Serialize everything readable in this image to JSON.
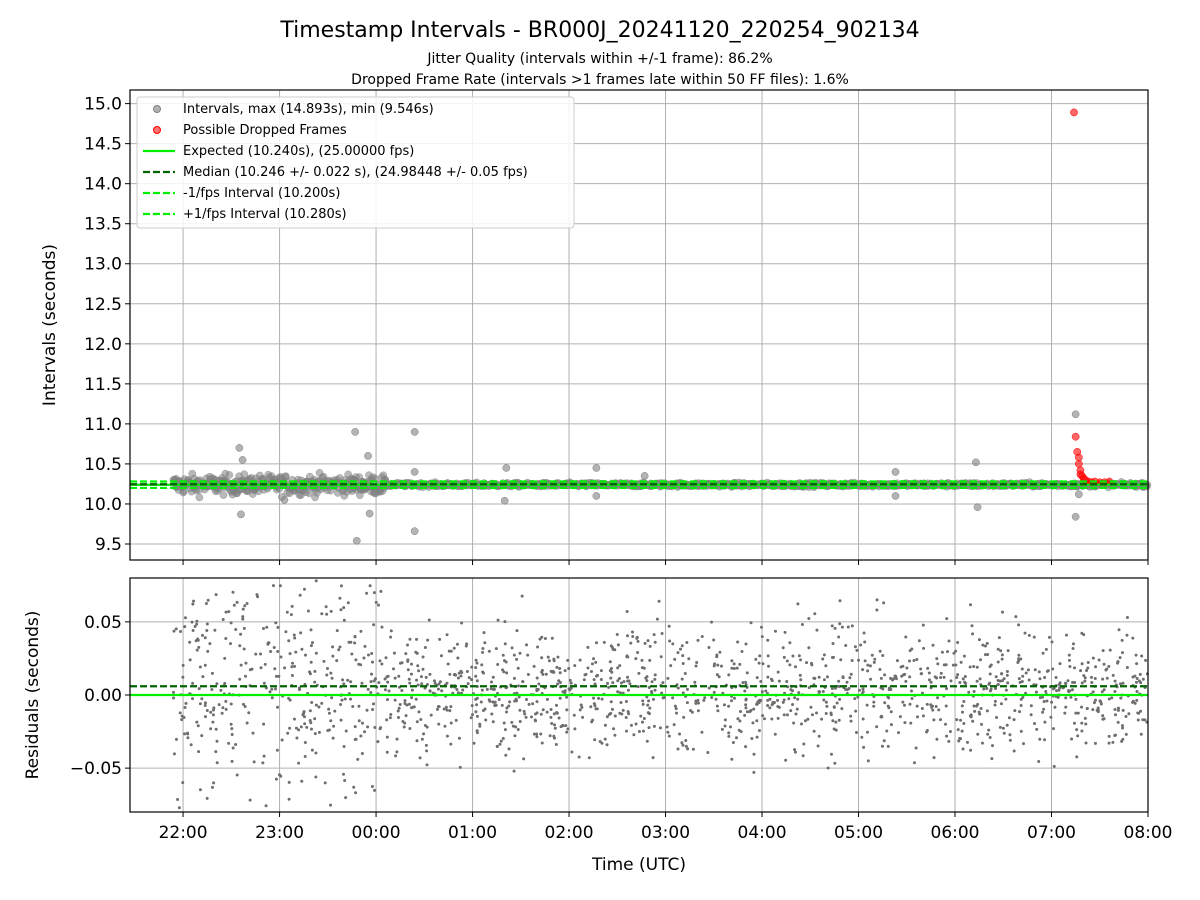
{
  "figure": {
    "title": "Timestamp Intervals - BR000J_20241120_220254_902134",
    "subtitle_line1": "Jitter Quality (intervals within +/-1 frame): 86.2%",
    "subtitle_line2": "Dropped Frame Rate (intervals >1 frames late within 50 FF files): 1.6%"
  },
  "legend": {
    "items": [
      {
        "label": "Intervals, max (14.893s), min (9.546s)",
        "kind": "marker",
        "color": "#808080"
      },
      {
        "label": "Possible Dropped Frames",
        "kind": "marker",
        "color": "#ff0000"
      },
      {
        "label": "Expected (10.240s), (25.00000 fps)",
        "kind": "solid",
        "color": "#00ee00"
      },
      {
        "label": "Median (10.246 +/- 0.022 s), (24.98448 +/- 0.05 fps)",
        "kind": "dashed",
        "color": "#006400"
      },
      {
        "label": "-1/fps Interval (10.200s)",
        "kind": "dashed",
        "color": "#00ee00"
      },
      {
        "label": "+1/fps Interval (10.280s)",
        "kind": "dashed",
        "color": "#00ee00"
      }
    ]
  },
  "colors": {
    "intervals": "#808080",
    "dropped": "#ff0000",
    "expected": "#00ee00",
    "median": "#006400",
    "grid": "#b0b0b0"
  },
  "chart_data": [
    {
      "type": "scatter",
      "panel": "top",
      "title": "Timestamp Intervals - BR000J_20241120_220254_902134",
      "xlabel": "",
      "ylabel": "Intervals (seconds)",
      "xlim_hours": [
        -2.55,
        8.0
      ],
      "ylim": [
        9.3,
        15.17
      ],
      "y_ticks": [
        "9.5",
        "10.0",
        "10.5",
        "11.0",
        "11.5",
        "12.0",
        "12.5",
        "13.0",
        "13.5",
        "14.0",
        "14.5",
        "15.0"
      ],
      "grid": true,
      "legend_position": "upper-left",
      "lines": [
        {
          "name": "Expected (10.240s), (25.00000 fps)",
          "y": 10.24,
          "style": "solid"
        },
        {
          "name": "Median (10.246 +/- 0.022 s), (24.98448 +/- 0.05 fps)",
          "y": 10.246,
          "style": "dashed"
        },
        {
          "name": "-1/fps Interval (10.200s)",
          "y": 10.2,
          "style": "dashed"
        },
        {
          "name": "+1/fps Interval (10.280s)",
          "y": 10.28,
          "style": "dashed"
        }
      ],
      "series": [
        {
          "name": "Intervals, max (14.893s), min (9.546s)",
          "max": 14.893,
          "min": 9.546,
          "outliers": [
            {
              "x": "22:35",
              "y": 10.7
            },
            {
              "x": "22:36",
              "y": 9.87
            },
            {
              "x": "22:37",
              "y": 10.55
            },
            {
              "x": "23:03",
              "y": 10.05
            },
            {
              "x": "23:47",
              "y": 10.9
            },
            {
              "x": "23:48",
              "y": 9.54
            },
            {
              "x": "23:55",
              "y": 10.6
            },
            {
              "x": "23:56",
              "y": 9.88
            },
            {
              "x": "00:24",
              "y": 10.9
            },
            {
              "x": "00:24",
              "y": 9.66
            },
            {
              "x": "00:24",
              "y": 10.4
            },
            {
              "x": "01:21",
              "y": 10.45
            },
            {
              "x": "01:20",
              "y": 10.04
            },
            {
              "x": "02:17",
              "y": 10.45
            },
            {
              "x": "02:17",
              "y": 10.1
            },
            {
              "x": "02:47",
              "y": 10.35
            },
            {
              "x": "05:23",
              "y": 10.4
            },
            {
              "x": "05:23",
              "y": 10.1
            },
            {
              "x": "06:13",
              "y": 10.52
            },
            {
              "x": "06:14",
              "y": 9.96
            },
            {
              "x": "07:15",
              "y": 11.12
            },
            {
              "x": "07:15",
              "y": 9.84
            },
            {
              "x": "07:17",
              "y": 10.12
            }
          ]
        },
        {
          "name": "Possible Dropped Frames",
          "points": [
            {
              "x": "07:14",
              "y": 14.89
            },
            {
              "x": "07:15",
              "y": 10.84
            },
            {
              "x": "07:16",
              "y": 10.65
            },
            {
              "x": "07:17",
              "y": 10.58
            },
            {
              "x": "07:17",
              "y": 10.5
            },
            {
              "x": "07:18",
              "y": 10.42
            },
            {
              "x": "07:18",
              "y": 10.37
            },
            {
              "x": "07:19",
              "y": 10.35
            },
            {
              "x": "07:20",
              "y": 10.32
            },
            {
              "x": "07:21",
              "y": 10.3
            },
            {
              "x": "07:23",
              "y": 10.28
            },
            {
              "x": "07:25",
              "y": 10.27
            },
            {
              "x": "07:27",
              "y": 10.28
            },
            {
              "x": "07:30",
              "y": 10.27
            },
            {
              "x": "07:33",
              "y": 10.27
            },
            {
              "x": "07:36",
              "y": 10.28
            }
          ]
        }
      ]
    },
    {
      "type": "scatter",
      "panel": "bottom",
      "xlabel": "Time (UTC)",
      "ylabel": "Residuals (seconds)",
      "x_ticks": [
        "22:00",
        "23:00",
        "00:00",
        "01:00",
        "02:00",
        "03:00",
        "04:00",
        "05:00",
        "06:00",
        "07:00",
        "08:00"
      ],
      "y_ticks": [
        "−0.05",
        "0.00",
        "0.05"
      ],
      "xlim_hours": [
        -2.55,
        8.0
      ],
      "ylim": [
        -0.08,
        0.08
      ],
      "grid": true,
      "lines": [
        {
          "name": "Expected",
          "y": 0.0,
          "style": "solid"
        },
        {
          "name": "Median",
          "y": 0.006,
          "style": "dashed"
        }
      ],
      "series": [
        {
          "name": "Residuals",
          "x_range_hours": [
            -2.1,
            8.0
          ],
          "spread": 0.025,
          "center": 0.004,
          "sample_count": 1700
        }
      ]
    }
  ]
}
